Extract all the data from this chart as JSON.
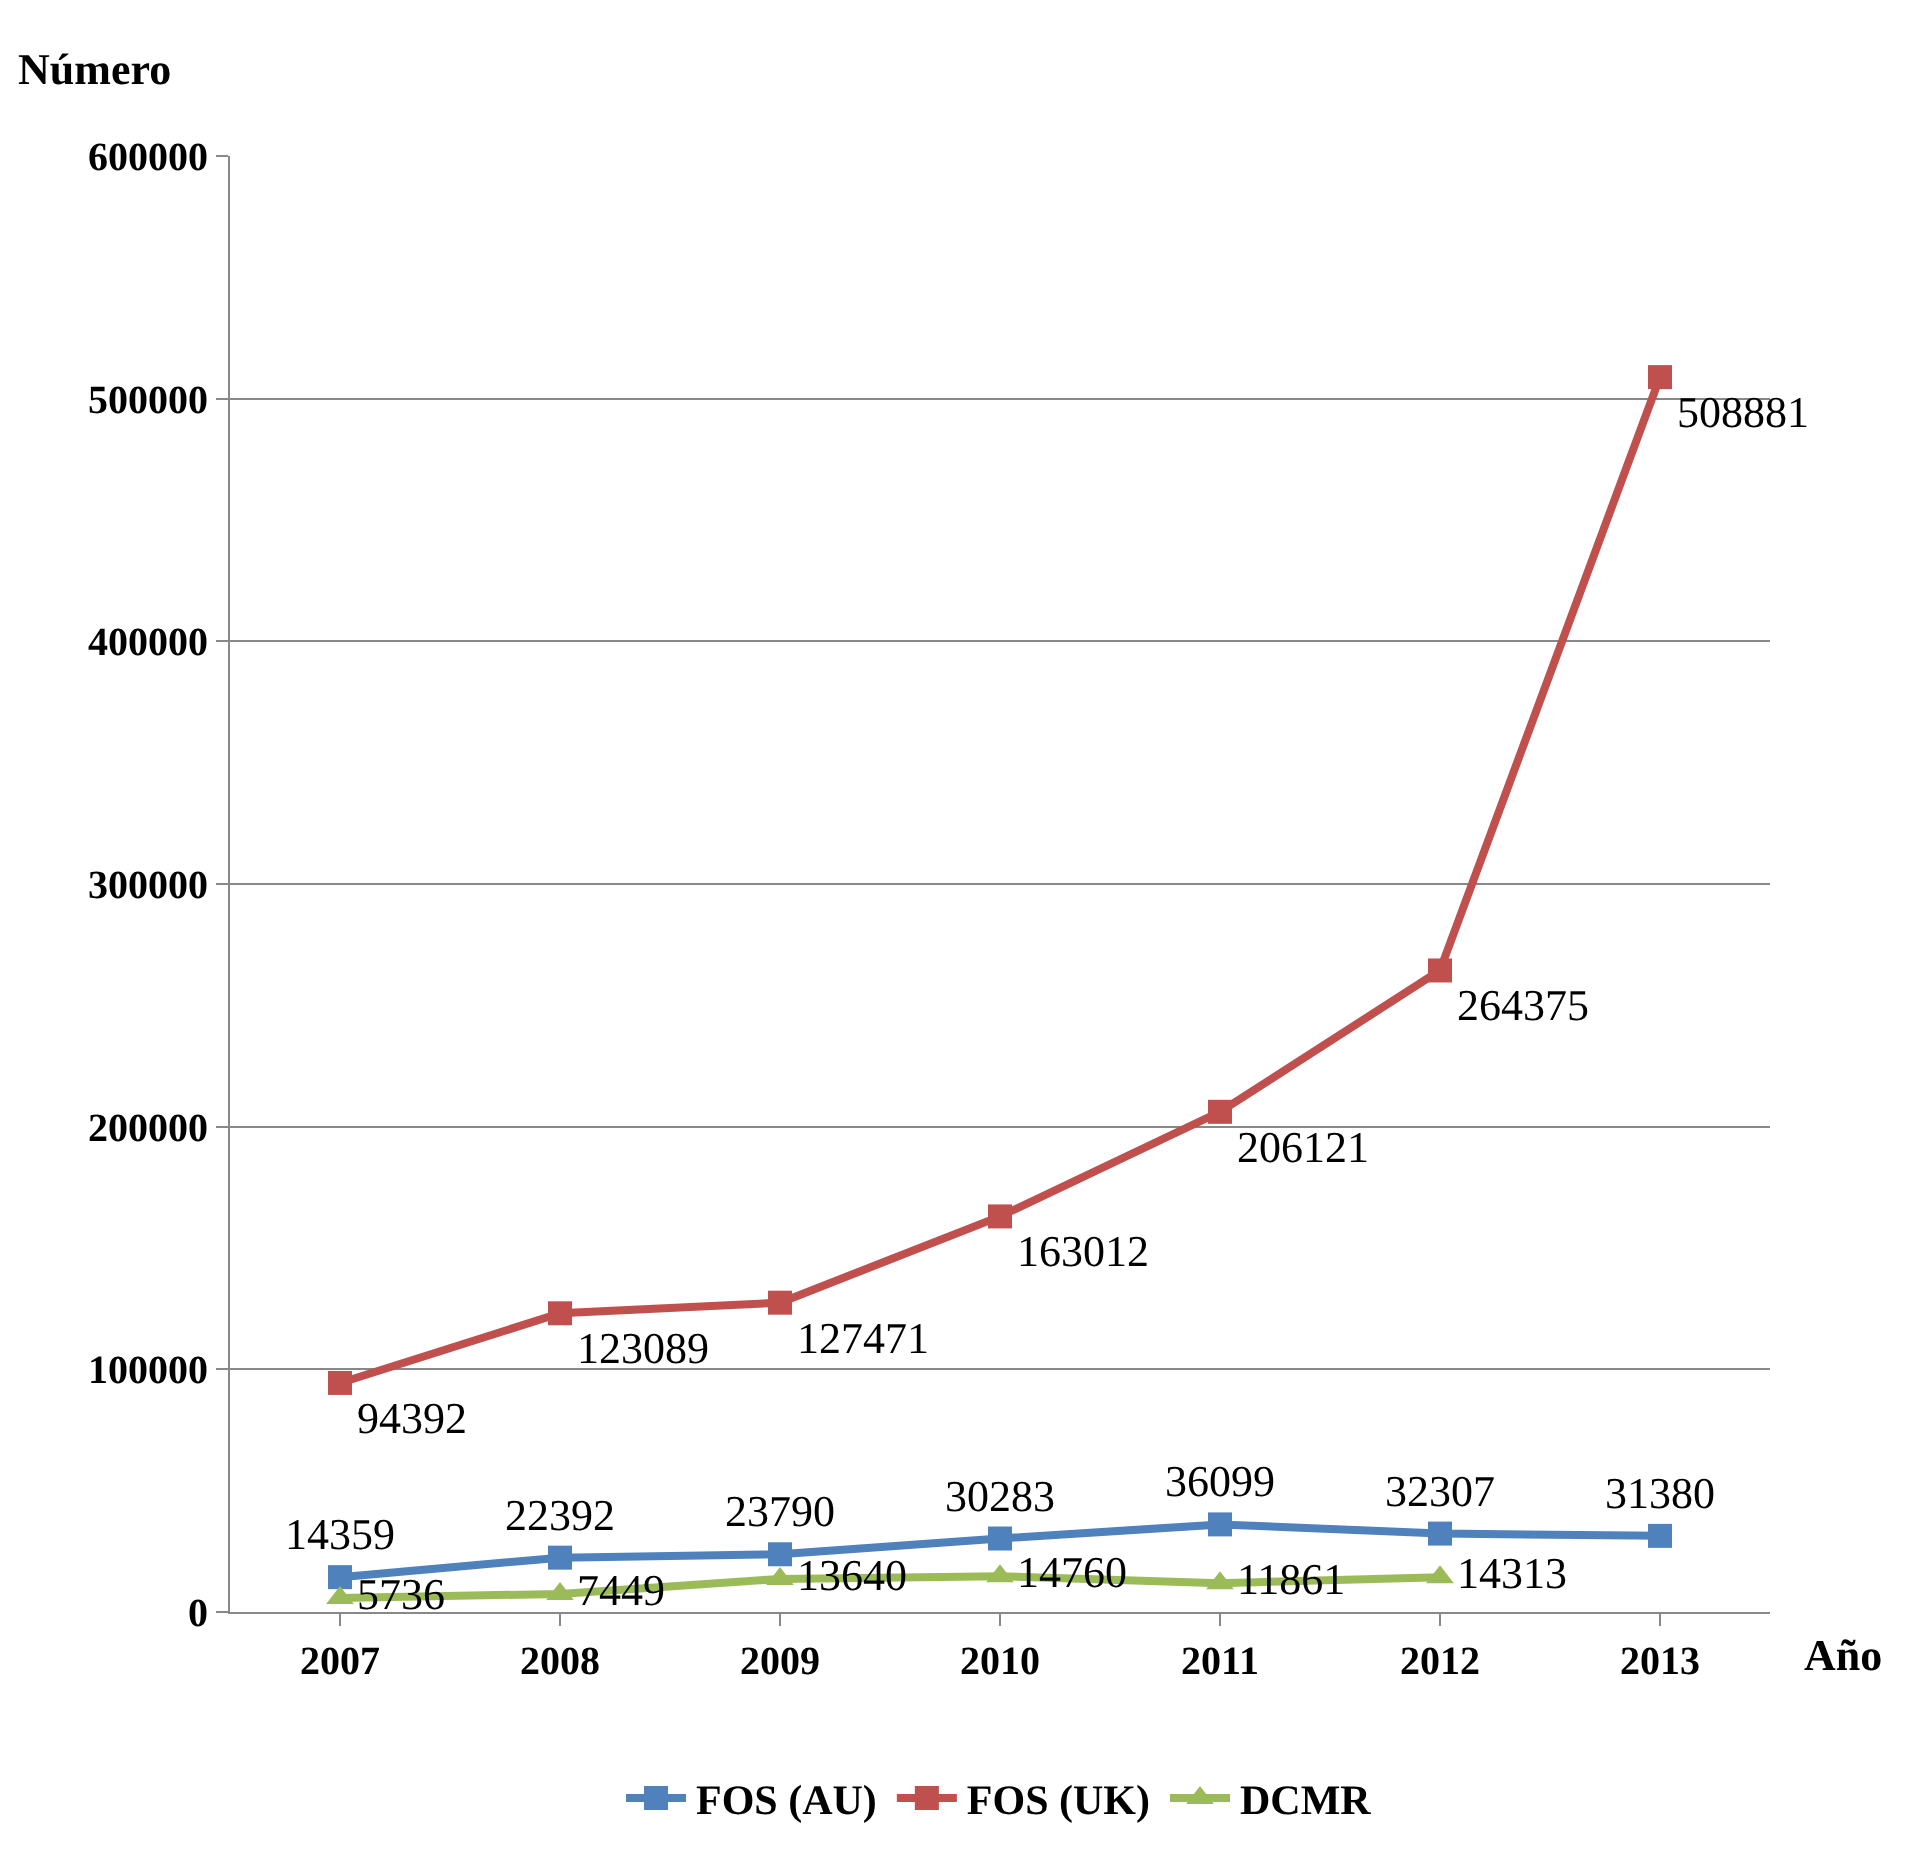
{
  "chart_data": {
    "type": "line",
    "xlabel": "Año",
    "ylabel": "Número",
    "categories": [
      "2007",
      "2008",
      "2009",
      "2010",
      "2011",
      "2012",
      "2013"
    ],
    "series": [
      {
        "name": "FOS (AU)",
        "color": "#4f81bd",
        "marker": "square",
        "values": [
          14359,
          22392,
          23790,
          30283,
          36099,
          32307,
          31380
        ]
      },
      {
        "name": "FOS (UK)",
        "color": "#c0504d",
        "marker": "square",
        "values": [
          94392,
          123089,
          127471,
          163012,
          206121,
          264375,
          508881
        ]
      },
      {
        "name": "DCMR",
        "color": "#9bbb59",
        "marker": "triangle",
        "values": [
          5736,
          7449,
          13640,
          14760,
          11861,
          14313,
          null
        ]
      }
    ],
    "ylim": [
      0,
      600000
    ],
    "yticks": [
      0,
      100000,
      200000,
      300000,
      400000,
      500000,
      600000
    ],
    "grid": "y",
    "legend": "bottom",
    "data_labels": true,
    "line_style": "solid"
  }
}
